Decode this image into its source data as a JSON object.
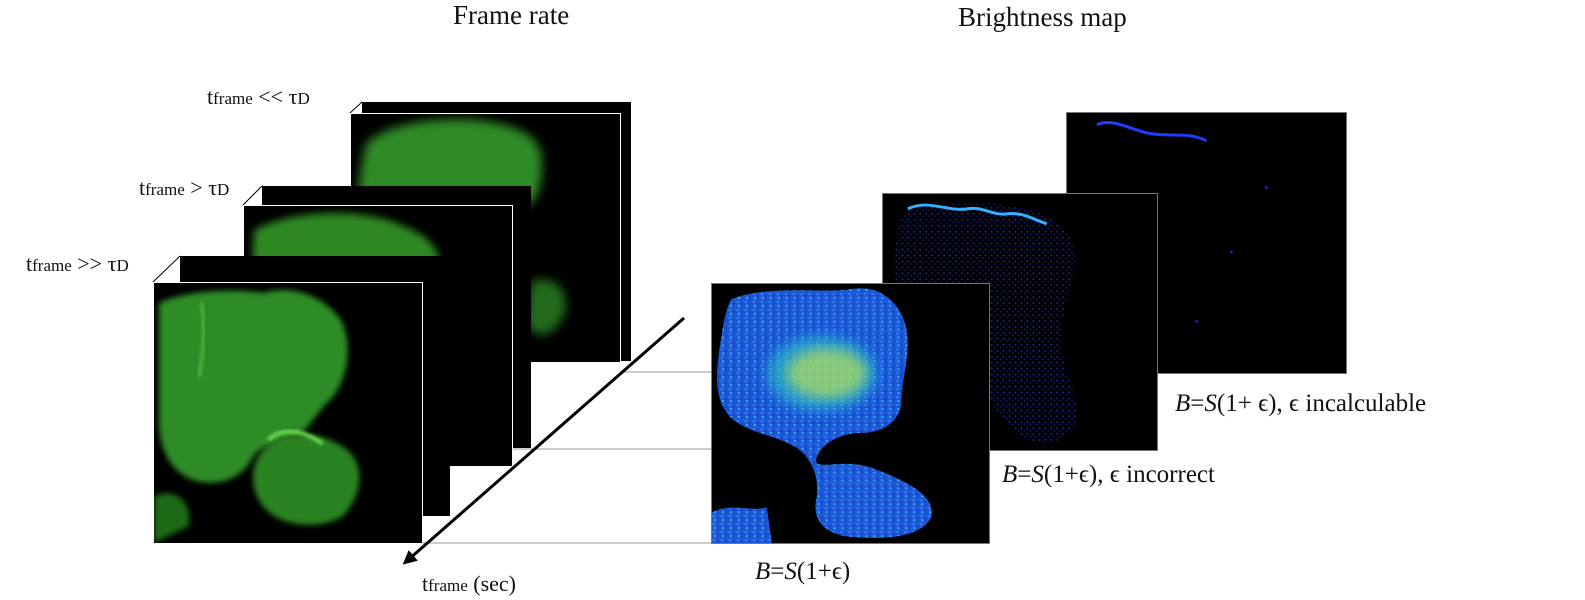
{
  "headings": {
    "frame_rate": "Frame rate",
    "brightness_map": "Brightness map"
  },
  "stack_labels": [
    {
      "t": "t",
      "sub": "frame",
      "rel": "<<",
      "tau": "τ",
      "tau_sub": "D"
    },
    {
      "t": "t",
      "sub": "frame",
      "rel": ">",
      "tau": "τ",
      "tau_sub": "D"
    },
    {
      "t": "t",
      "sub": "frame",
      "rel": ">>",
      "tau": "τ",
      "tau_sub": "D"
    }
  ],
  "axis_label": {
    "t": "t",
    "sub": "frame",
    "unit": "(sec)"
  },
  "brightness_captions": {
    "correct": {
      "B": "B",
      "eq": "=",
      "S": "S",
      "rest": "(1+ϵ)"
    },
    "incorrect": {
      "B": "B",
      "eq": "=",
      "S": "S",
      "rest": "(1+ϵ), ϵ incorrect"
    },
    "incalculable": {
      "B": "B",
      "eq": "=",
      "S": "S",
      "rest": "(1+ ϵ), ϵ incalculable"
    }
  },
  "colors": {
    "cell_green": "#3c9a2e",
    "cell_bright": "#62d34d",
    "map_blue": "#1a4fd8",
    "map_cyan": "#27c3e8",
    "map_yellow": "#d6f03a",
    "map_dark_blue": "#0c1aa8"
  }
}
